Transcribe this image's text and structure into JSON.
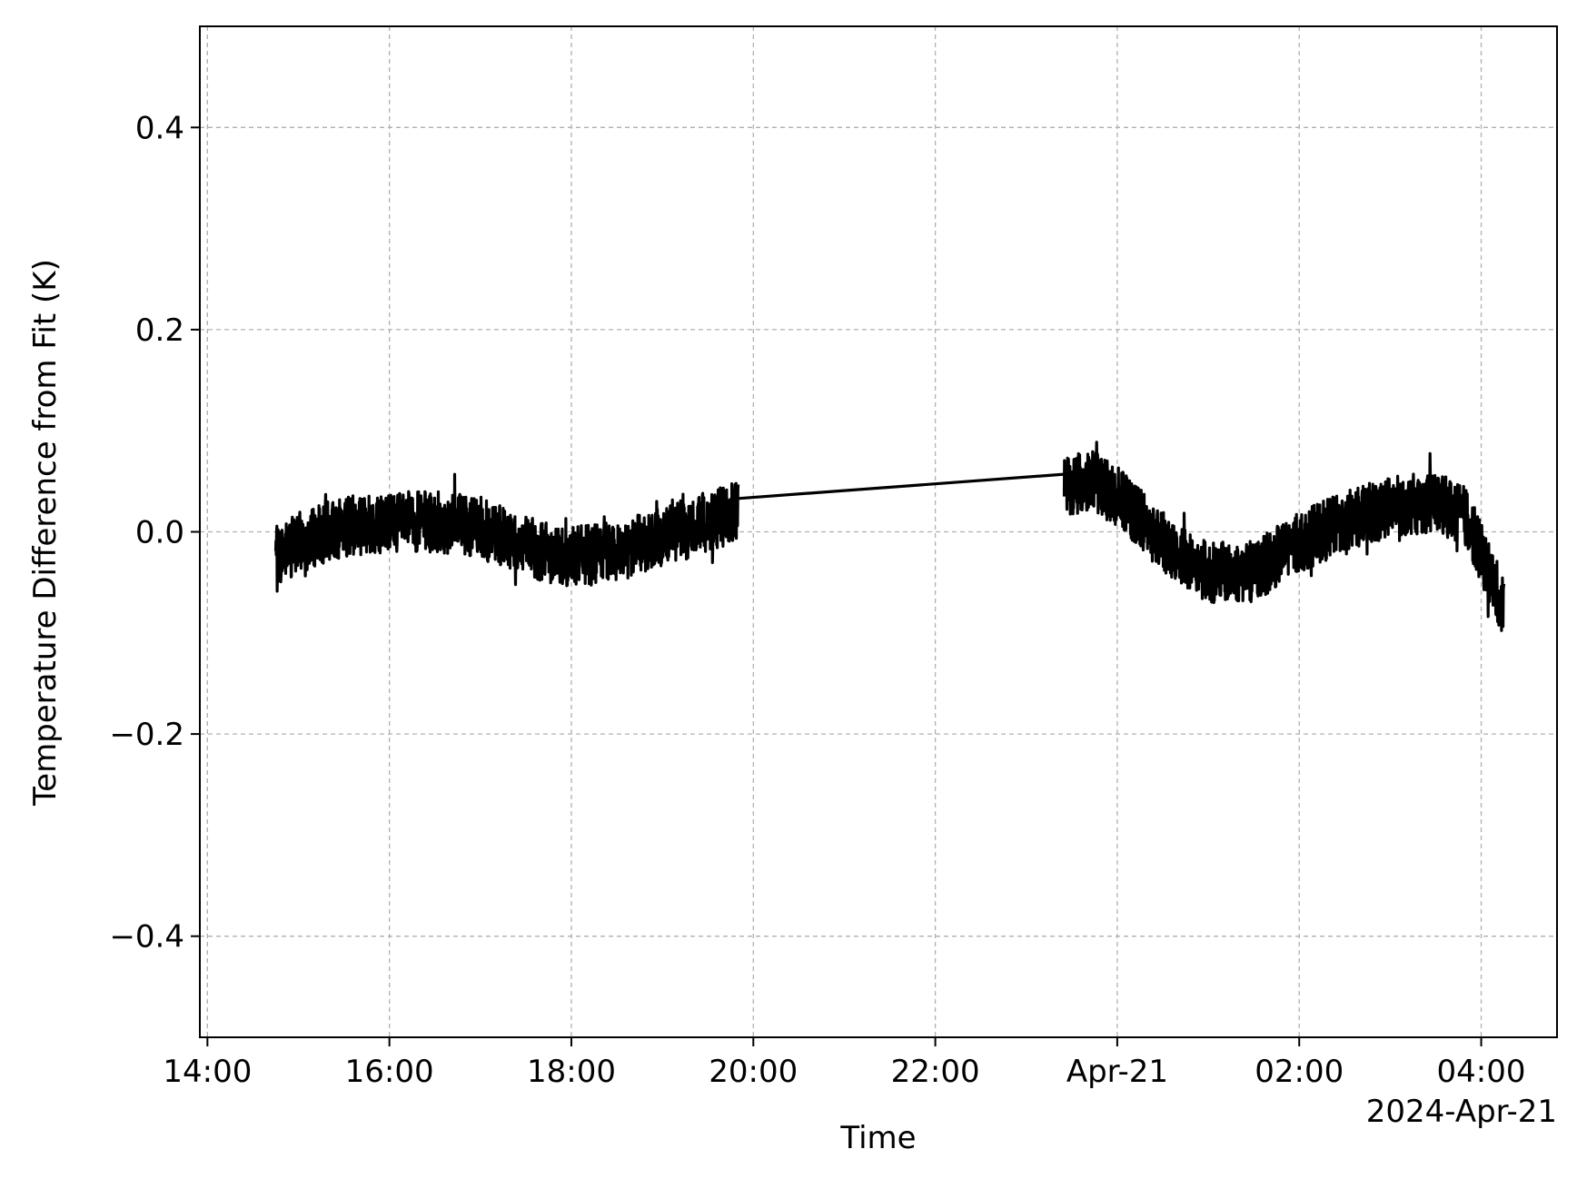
{
  "chart_data": {
    "type": "line",
    "title": "",
    "xlabel": "Time",
    "ylabel": "Temperature Difference from Fit (K)",
    "x_offset_label": "2024-Apr-21",
    "x_axis_kind": "datetime",
    "xlim": [
      "2024-04-20T13:55",
      "2024-04-21T04:50"
    ],
    "ylim": [
      -0.5,
      0.5
    ],
    "grid": true,
    "legend": "none",
    "x_ticks": [
      {
        "time": "2024-04-20T14:00",
        "label": "14:00"
      },
      {
        "time": "2024-04-20T16:00",
        "label": "16:00"
      },
      {
        "time": "2024-04-20T18:00",
        "label": "18:00"
      },
      {
        "time": "2024-04-20T20:00",
        "label": "20:00"
      },
      {
        "time": "2024-04-20T22:00",
        "label": "22:00"
      },
      {
        "time": "2024-04-21T00:00",
        "label": "Apr-21"
      },
      {
        "time": "2024-04-21T02:00",
        "label": "02:00"
      },
      {
        "time": "2024-04-21T04:00",
        "label": "04:00"
      }
    ],
    "y_ticks": [
      {
        "value": 0.4,
        "label": "0.4"
      },
      {
        "value": 0.2,
        "label": "0.2"
      },
      {
        "value": 0.0,
        "label": "0.0"
      },
      {
        "value": -0.2,
        "label": "−0.2"
      },
      {
        "value": -0.4,
        "label": "−0.4"
      }
    ],
    "series": [
      {
        "color": "#000000",
        "noise_amplitude": 0.03,
        "segments": [
          {
            "x": [
              "2024-04-20T14:45",
              "2024-04-20T15:00",
              "2024-04-20T15:30",
              "2024-04-20T16:00",
              "2024-04-20T16:30",
              "2024-04-20T17:00",
              "2024-04-20T17:30",
              "2024-04-20T18:00",
              "2024-04-20T18:30",
              "2024-04-20T19:00",
              "2024-04-20T19:30",
              "2024-04-20T19:50"
            ],
            "y": [
              -0.025,
              -0.01,
              0.005,
              0.01,
              0.01,
              0.005,
              -0.015,
              -0.025,
              -0.02,
              -0.005,
              0.01,
              0.02
            ]
          },
          {
            "x": [
              "2024-04-20T19:50",
              "2024-04-20T23:25"
            ],
            "y": [
              0.033,
              0.057
            ]
          },
          {
            "x": [
              "2024-04-20T23:25",
              "2024-04-20T23:45",
              "2024-04-21T00:00",
              "2024-04-21T00:30",
              "2024-04-21T01:00",
              "2024-04-21T01:30",
              "2024-04-21T02:00",
              "2024-04-21T02:30",
              "2024-04-21T03:00",
              "2024-04-21T03:30",
              "2024-04-21T03:50",
              "2024-04-21T04:05",
              "2024-04-21T04:15"
            ],
            "y": [
              0.045,
              0.05,
              0.035,
              -0.01,
              -0.04,
              -0.04,
              -0.01,
              0.01,
              0.025,
              0.03,
              0.015,
              -0.04,
              -0.075
            ]
          }
        ]
      }
    ]
  }
}
